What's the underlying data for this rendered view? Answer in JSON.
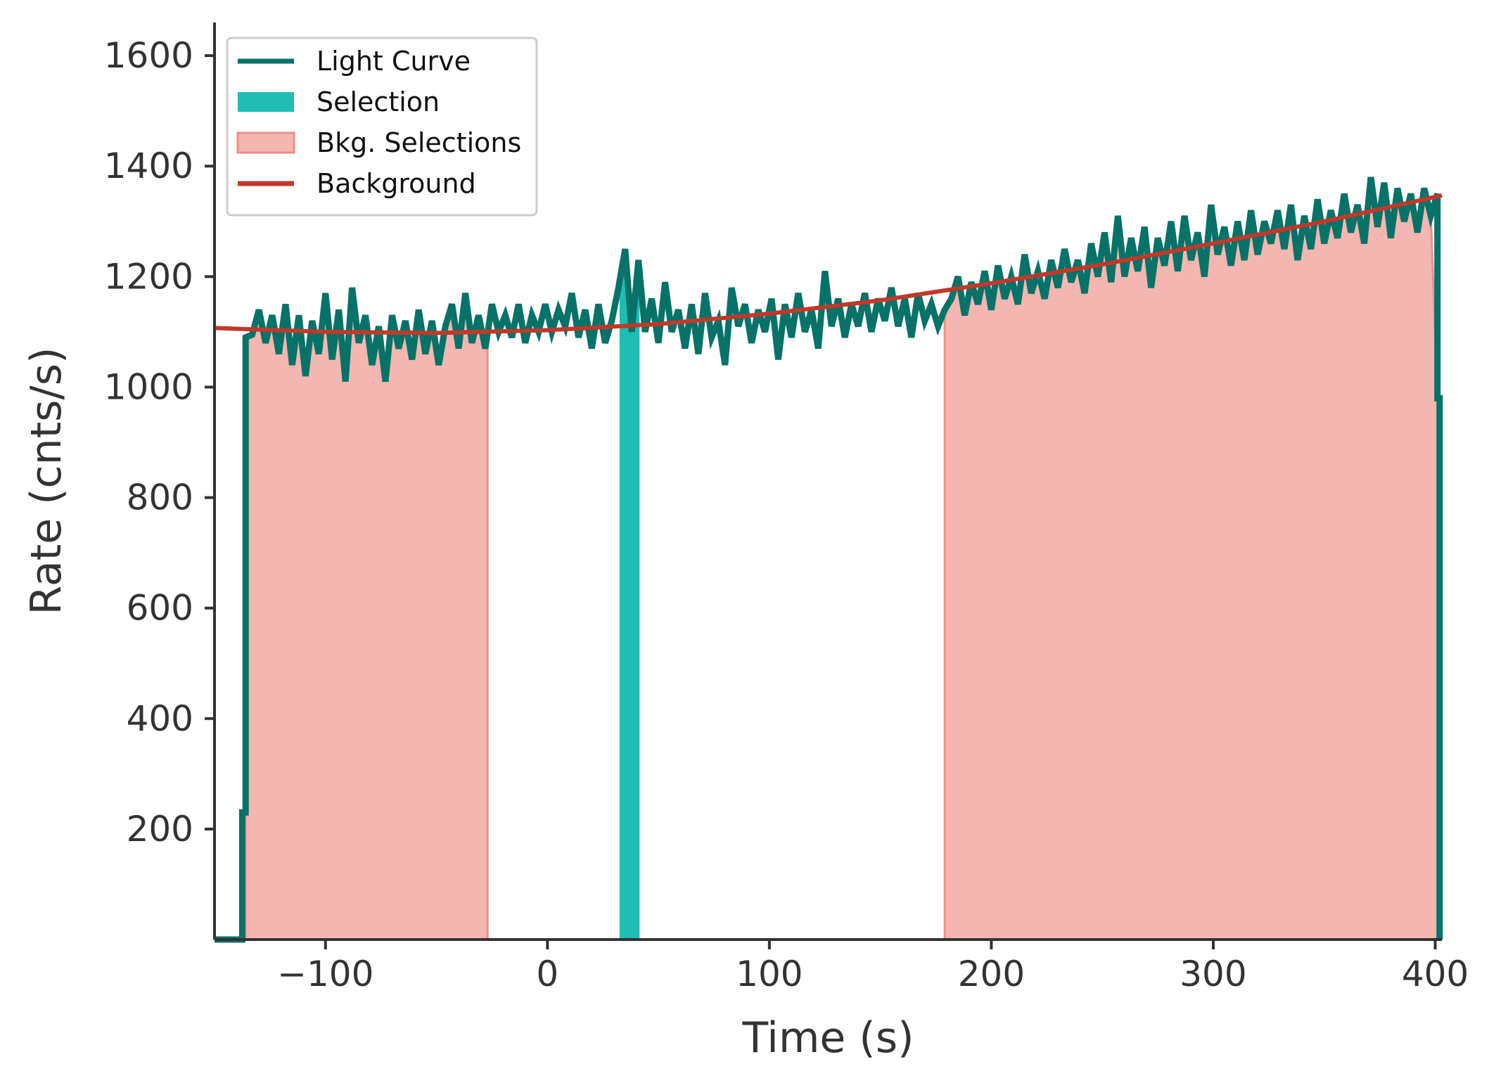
{
  "chart_data": {
    "type": "line",
    "title": "",
    "xlabel": "Time (s)",
    "ylabel": "Rate (cnts/s)",
    "xlim": [
      -150,
      403
    ],
    "ylim": [
      0,
      1660
    ],
    "x_ticks": [
      {
        "value": -100,
        "label": "−100"
      },
      {
        "value": 0,
        "label": "0"
      },
      {
        "value": 100,
        "label": "100"
      },
      {
        "value": 200,
        "label": "200"
      },
      {
        "value": 300,
        "label": "300"
      },
      {
        "value": 400,
        "label": "400"
      }
    ],
    "y_ticks": [
      {
        "value": 200,
        "label": "200"
      },
      {
        "value": 400,
        "label": "400"
      },
      {
        "value": 600,
        "label": "600"
      },
      {
        "value": 800,
        "label": "800"
      },
      {
        "value": 1000,
        "label": "1000"
      },
      {
        "value": 1200,
        "label": "1200"
      },
      {
        "value": 1400,
        "label": "1400"
      },
      {
        "value": 1600,
        "label": "1600"
      }
    ],
    "grid": false,
    "legend_position": "top-left",
    "legend": [
      {
        "name": "Light Curve",
        "kind": "line",
        "color": "#077268"
      },
      {
        "name": "Selection",
        "kind": "patch",
        "color": "#20bdb4"
      },
      {
        "name": "Bkg. Selections",
        "kind": "patch",
        "color": "#f4b6b0"
      },
      {
        "name": "Background",
        "kind": "line",
        "color": "#c0392b"
      }
    ],
    "light_curve": {
      "name": "Light Curve",
      "color": "#077268",
      "points": [
        [
          -150,
          0
        ],
        [
          -137.5,
          0
        ],
        [
          -137.5,
          230
        ],
        [
          -136,
          230
        ],
        [
          -136,
          1090
        ],
        [
          -133,
          1095
        ],
        [
          -130,
          1140
        ],
        [
          -127,
          1080
        ],
        [
          -124,
          1130
        ],
        [
          -121,
          1060
        ],
        [
          -118,
          1150
        ],
        [
          -115,
          1040
        ],
        [
          -112,
          1130
        ],
        [
          -109,
          1020
        ],
        [
          -106,
          1120
        ],
        [
          -103,
          1060
        ],
        [
          -100,
          1170
        ],
        [
          -97,
          1050
        ],
        [
          -94,
          1140
        ],
        [
          -91,
          1010
        ],
        [
          -88,
          1180
        ],
        [
          -85,
          1080
        ],
        [
          -82,
          1130
        ],
        [
          -79,
          1040
        ],
        [
          -76,
          1110
        ],
        [
          -73,
          1010
        ],
        [
          -70,
          1130
        ],
        [
          -67,
          1070
        ],
        [
          -64,
          1120
        ],
        [
          -61,
          1050
        ],
        [
          -58,
          1140
        ],
        [
          -55,
          1060
        ],
        [
          -52,
          1120
        ],
        [
          -49,
          1040
        ],
        [
          -46,
          1110
        ],
        [
          -43,
          1150
        ],
        [
          -40,
          1070
        ],
        [
          -37,
          1170
        ],
        [
          -34,
          1080
        ],
        [
          -31,
          1130
        ],
        [
          -28,
          1070
        ],
        [
          -25,
          1150
        ],
        [
          -22,
          1100
        ],
        [
          -19,
          1130
        ],
        [
          -16,
          1090
        ],
        [
          -13,
          1150
        ],
        [
          -10,
          1080
        ],
        [
          -7,
          1130
        ],
        [
          -4,
          1100
        ],
        [
          -1,
          1150
        ],
        [
          2,
          1100
        ],
        [
          5,
          1140
        ],
        [
          8,
          1110
        ],
        [
          11,
          1170
        ],
        [
          14,
          1090
        ],
        [
          17,
          1140
        ],
        [
          20,
          1070
        ],
        [
          23,
          1150
        ],
        [
          26,
          1080
        ],
        [
          29,
          1120
        ],
        [
          32,
          1180
        ],
        [
          35,
          1250
        ],
        [
          38,
          1100
        ],
        [
          41,
          1230
        ],
        [
          44,
          1100
        ],
        [
          47,
          1160
        ],
        [
          50,
          1080
        ],
        [
          53,
          1190
        ],
        [
          56,
          1100
        ],
        [
          59,
          1140
        ],
        [
          62,
          1070
        ],
        [
          65,
          1150
        ],
        [
          68,
          1060
        ],
        [
          71,
          1170
        ],
        [
          74,
          1090
        ],
        [
          77,
          1120
        ],
        [
          80,
          1040
        ],
        [
          83,
          1180
        ],
        [
          86,
          1110
        ],
        [
          89,
          1150
        ],
        [
          92,
          1080
        ],
        [
          95,
          1140
        ],
        [
          98,
          1100
        ],
        [
          101,
          1160
        ],
        [
          104,
          1050
        ],
        [
          107,
          1150
        ],
        [
          110,
          1090
        ],
        [
          113,
          1170
        ],
        [
          116,
          1100
        ],
        [
          119,
          1140
        ],
        [
          122,
          1070
        ],
        [
          125,
          1210
        ],
        [
          128,
          1110
        ],
        [
          131,
          1160
        ],
        [
          134,
          1090
        ],
        [
          137,
          1150
        ],
        [
          140,
          1110
        ],
        [
          143,
          1170
        ],
        [
          146,
          1100
        ],
        [
          149,
          1160
        ],
        [
          152,
          1120
        ],
        [
          155,
          1180
        ],
        [
          158,
          1110
        ],
        [
          161,
          1160
        ],
        [
          164,
          1090
        ],
        [
          167,
          1170
        ],
        [
          170,
          1120
        ],
        [
          173,
          1150
        ],
        [
          176,
          1110
        ],
        [
          179,
          1140
        ],
        [
          182,
          1160
        ],
        [
          185,
          1200
        ],
        [
          188,
          1130
        ],
        [
          191,
          1190
        ],
        [
          194,
          1150
        ],
        [
          197,
          1210
        ],
        [
          200,
          1140
        ],
        [
          203,
          1220
        ],
        [
          206,
          1160
        ],
        [
          209,
          1200
        ],
        [
          212,
          1150
        ],
        [
          215,
          1240
        ],
        [
          218,
          1170
        ],
        [
          221,
          1210
        ],
        [
          224,
          1160
        ],
        [
          227,
          1230
        ],
        [
          230,
          1180
        ],
        [
          233,
          1250
        ],
        [
          236,
          1190
        ],
        [
          239,
          1230
        ],
        [
          242,
          1170
        ],
        [
          245,
          1260
        ],
        [
          248,
          1200
        ],
        [
          251,
          1280
        ],
        [
          254,
          1190
        ],
        [
          257,
          1310
        ],
        [
          260,
          1200
        ],
        [
          263,
          1270
        ],
        [
          266,
          1210
        ],
        [
          269,
          1290
        ],
        [
          272,
          1180
        ],
        [
          275,
          1270
        ],
        [
          278,
          1220
        ],
        [
          281,
          1300
        ],
        [
          284,
          1210
        ],
        [
          287,
          1310
        ],
        [
          290,
          1230
        ],
        [
          293,
          1280
        ],
        [
          296,
          1200
        ],
        [
          299,
          1330
        ],
        [
          302,
          1240
        ],
        [
          305,
          1290
        ],
        [
          308,
          1220
        ],
        [
          311,
          1300
        ],
        [
          314,
          1230
        ],
        [
          317,
          1320
        ],
        [
          320,
          1240
        ],
        [
          323,
          1300
        ],
        [
          326,
          1260
        ],
        [
          329,
          1320
        ],
        [
          332,
          1250
        ],
        [
          335,
          1330
        ],
        [
          338,
          1230
        ],
        [
          341,
          1310
        ],
        [
          344,
          1250
        ],
        [
          347,
          1340
        ],
        [
          350,
          1260
        ],
        [
          353,
          1320
        ],
        [
          356,
          1270
        ],
        [
          359,
          1350
        ],
        [
          362,
          1280
        ],
        [
          365,
          1330
        ],
        [
          368,
          1260
        ],
        [
          371,
          1380
        ],
        [
          374,
          1290
        ],
        [
          377,
          1370
        ],
        [
          380,
          1270
        ],
        [
          383,
          1360
        ],
        [
          386,
          1300
        ],
        [
          389,
          1350
        ],
        [
          392,
          1280
        ],
        [
          395,
          1360
        ],
        [
          398,
          1310
        ],
        [
          401,
          1350
        ],
        [
          401,
          980
        ],
        [
          402,
          980
        ],
        [
          402,
          0
        ]
      ]
    },
    "selection": {
      "name": "Selection",
      "color": "#20bdb4",
      "x_range": [
        32.5,
        41.5
      ]
    },
    "bkg_selections": {
      "name": "Bkg. Selections",
      "color": "#f4b6b0",
      "edge_color": "#ee8e88",
      "ranges": [
        [
          -136,
          -27
        ],
        [
          179,
          401
        ]
      ]
    },
    "background": {
      "name": "Background",
      "color": "#c0392b",
      "x": [
        -150,
        -100,
        -50,
        0,
        50,
        100,
        150,
        200,
        250,
        300,
        350,
        403
      ],
      "y": [
        1107,
        1100,
        1098,
        1103,
        1114,
        1133,
        1157,
        1188,
        1222,
        1260,
        1300,
        1347
      ]
    }
  }
}
